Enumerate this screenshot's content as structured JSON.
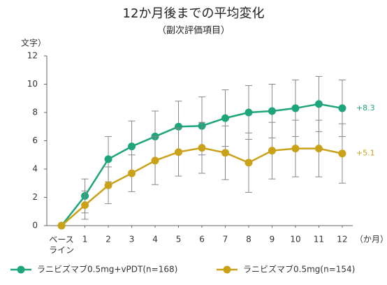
{
  "chart_data": {
    "type": "line",
    "title": "12か月後までの平均変化",
    "subtitle": "（副次評価項目）",
    "y_label": "文字）",
    "x_unit_label": "（か月）",
    "x": [
      0,
      1,
      2,
      3,
      4,
      5,
      6,
      7,
      8,
      9,
      10,
      11,
      12
    ],
    "xlim": [
      -0.63,
      12.45
    ],
    "xticks": [
      {
        "value": 0,
        "label": "ベース\nライン"
      },
      1,
      2,
      3,
      4,
      5,
      6,
      7,
      8,
      9,
      10,
      11,
      12
    ],
    "ylim": [
      0,
      12
    ],
    "yticks": [
      0,
      2,
      4,
      6,
      8,
      10,
      12
    ],
    "series": [
      {
        "name": "ラニビズマブ0.5mg+vPDT(n=168)",
        "color": "#1fa57c",
        "values": [
          0,
          2.1,
          4.7,
          5.6,
          6.3,
          7.0,
          7.05,
          7.6,
          8.0,
          8.1,
          8.3,
          8.6,
          8.3
        ],
        "errors": [
          null,
          1.2,
          1.6,
          1.8,
          1.8,
          1.8,
          2.05,
          2.0,
          1.9,
          1.9,
          2.0,
          1.95,
          2.0
        ],
        "value_labels": [
          null,
          null,
          null,
          null,
          null,
          null,
          null,
          null,
          null,
          null,
          null,
          null,
          "+8.3"
        ]
      },
      {
        "name": "ラニビズマブ0.5mg(n=154)",
        "color": "#c9a21a",
        "values": [
          0,
          1.45,
          2.85,
          3.7,
          4.6,
          5.2,
          5.5,
          5.15,
          4.45,
          5.3,
          5.45,
          5.45,
          5.1
        ],
        "errors": [
          null,
          1.0,
          1.3,
          1.3,
          1.7,
          1.7,
          1.8,
          1.9,
          2.1,
          2.0,
          2.0,
          2.0,
          2.1
        ],
        "value_labels": [
          null,
          null,
          null,
          null,
          null,
          null,
          null,
          null,
          null,
          null,
          null,
          null,
          "+5.1"
        ]
      }
    ]
  }
}
